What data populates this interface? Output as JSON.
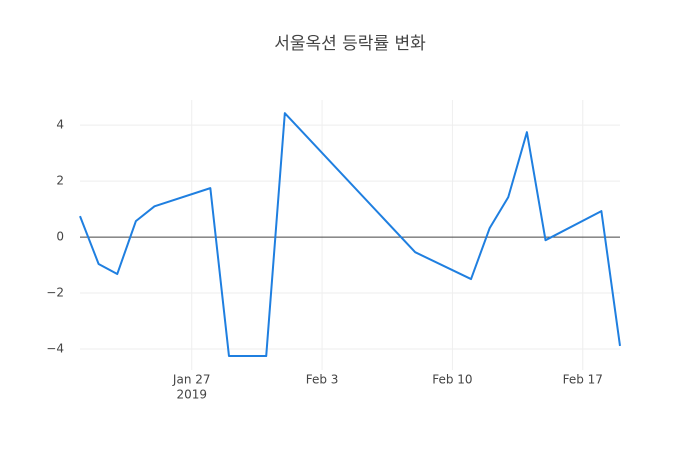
{
  "chart_data": {
    "type": "line",
    "title": "서울옥션 등락률 변화",
    "x": [
      "2019-01-21",
      "2019-01-22",
      "2019-01-23",
      "2019-01-24",
      "2019-01-25",
      "2019-01-28",
      "2019-01-29",
      "2019-01-31",
      "2019-02-01",
      "2019-02-08",
      "2019-02-11",
      "2019-02-12",
      "2019-02-13",
      "2019-02-14",
      "2019-02-15",
      "2019-02-18",
      "2019-02-19"
    ],
    "series": [
      {
        "color": "#1f7fe0",
        "values": [
          0.75,
          -0.96,
          -1.32,
          0.57,
          1.1,
          1.75,
          -4.25,
          -4.25,
          4.43,
          -0.54,
          -1.5,
          0.32,
          1.43,
          3.75,
          -0.11,
          0.93,
          -3.89
        ]
      }
    ],
    "xlim": [
      "2019-01-21",
      "2019-02-19"
    ],
    "xticks": [
      {
        "value": "2019-01-27",
        "label": "Jan 27",
        "sublabel": "2019"
      },
      {
        "value": "2019-02-03",
        "label": "Feb 3"
      },
      {
        "value": "2019-02-10",
        "label": "Feb 10"
      },
      {
        "value": "2019-02-17",
        "label": "Feb 17"
      }
    ],
    "ylim": [
      -4.75,
      4.9
    ],
    "yticks": [
      {
        "value": -4,
        "label": "−4"
      },
      {
        "value": -2,
        "label": "−2"
      },
      0,
      2,
      4
    ],
    "grid": true,
    "zeroline": true
  }
}
